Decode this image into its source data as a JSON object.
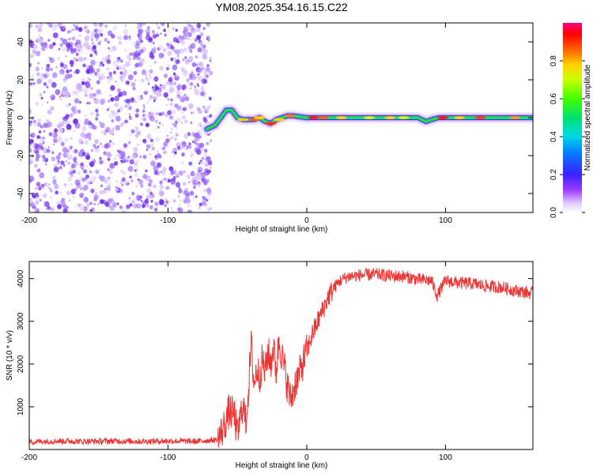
{
  "title": "YM08.2025.354.16.15.C22",
  "chart_data": [
    {
      "type": "heatmap",
      "title": "YM08.2025.354.16.15.C22",
      "xlabel": "Height of straight line (km)",
      "ylabel": "Frequency (Hz)",
      "xlim": [
        -200,
        163
      ],
      "ylim": [
        -50,
        50
      ],
      "xticks": [
        -200,
        -100,
        0,
        100
      ],
      "xtick_labels": [
        "-200",
        "-100",
        "0",
        "100"
      ],
      "yticks": [
        -40,
        -20,
        0,
        20,
        40
      ],
      "ytick_labels": [
        "-40",
        "-20",
        "0",
        "20",
        "40"
      ],
      "noise_region_x": [
        -200,
        -69
      ],
      "signal_ridge": [
        {
          "x": -72,
          "f": -6
        },
        {
          "x": -66,
          "f": -4
        },
        {
          "x": -62,
          "f": 0
        },
        {
          "x": -58,
          "f": 4
        },
        {
          "x": -54,
          "f": 4
        },
        {
          "x": -50,
          "f": 0
        },
        {
          "x": -46,
          "f": -1
        },
        {
          "x": -42,
          "f": -1
        },
        {
          "x": -38,
          "f": -1
        },
        {
          "x": -34,
          "f": 0
        },
        {
          "x": -30,
          "f": -2
        },
        {
          "x": -26,
          "f": -3
        },
        {
          "x": -22,
          "f": -1
        },
        {
          "x": -18,
          "f": 0
        },
        {
          "x": -14,
          "f": 1
        },
        {
          "x": -10,
          "f": 1
        },
        {
          "x": 0,
          "f": 0
        },
        {
          "x": 40,
          "f": 0
        },
        {
          "x": 80,
          "f": 0
        },
        {
          "x": 86,
          "f": -2
        },
        {
          "x": 90,
          "f": -1
        },
        {
          "x": 95,
          "f": 0
        },
        {
          "x": 163,
          "f": 0
        }
      ],
      "colorbar": {
        "label": "Normalized spectral amplitude",
        "range": [
          0,
          1
        ],
        "ticks": [
          0.0,
          0.2,
          0.4,
          0.6,
          0.8
        ],
        "tick_labels": [
          "0.0",
          "0.2",
          "0.4",
          "0.6",
          "0.8"
        ]
      }
    },
    {
      "type": "line",
      "xlabel": "Height of straight line (km)",
      "ylabel": "SNR (10 * v/v)",
      "xlim": [
        -200,
        163
      ],
      "ylim": [
        0,
        4400
      ],
      "xticks": [
        -200,
        -100,
        0,
        100
      ],
      "xtick_labels": [
        "-200",
        "-100",
        "0",
        "100"
      ],
      "yticks": [
        1000,
        2000,
        3000,
        4000
      ],
      "ytick_labels": [
        "1000",
        "2000",
        "3000",
        "4000"
      ],
      "series": [
        {
          "name": "SNR",
          "color": "#ee3333",
          "x": [
            -200,
            -180,
            -160,
            -140,
            -120,
            -100,
            -80,
            -64,
            -60,
            -56,
            -52,
            -50,
            -48,
            -46,
            -44,
            -42,
            -40,
            -38,
            -36,
            -34,
            -32,
            -30,
            -28,
            -26,
            -24,
            -22,
            -20,
            -18,
            -16,
            -14,
            -12,
            -10,
            -8,
            -6,
            -4,
            -2,
            0,
            4,
            8,
            12,
            16,
            20,
            24,
            30,
            40,
            50,
            60,
            70,
            80,
            90,
            94,
            100,
            110,
            120,
            130,
            140,
            150,
            163
          ],
          "y": [
            180,
            200,
            190,
            200,
            190,
            200,
            190,
            230,
            500,
            900,
            800,
            300,
            700,
            1100,
            600,
            1400,
            2500,
            1500,
            1900,
            1700,
            2100,
            1800,
            2300,
            2000,
            2400,
            1800,
            2600,
            2200,
            1900,
            1500,
            1200,
            1300,
            1600,
            1700,
            1900,
            2100,
            2300,
            2700,
            3000,
            3300,
            3600,
            3800,
            3950,
            4050,
            4080,
            4100,
            4060,
            4050,
            3980,
            3950,
            3600,
            3950,
            3900,
            3880,
            3820,
            3800,
            3720,
            3650
          ]
        }
      ]
    }
  ]
}
